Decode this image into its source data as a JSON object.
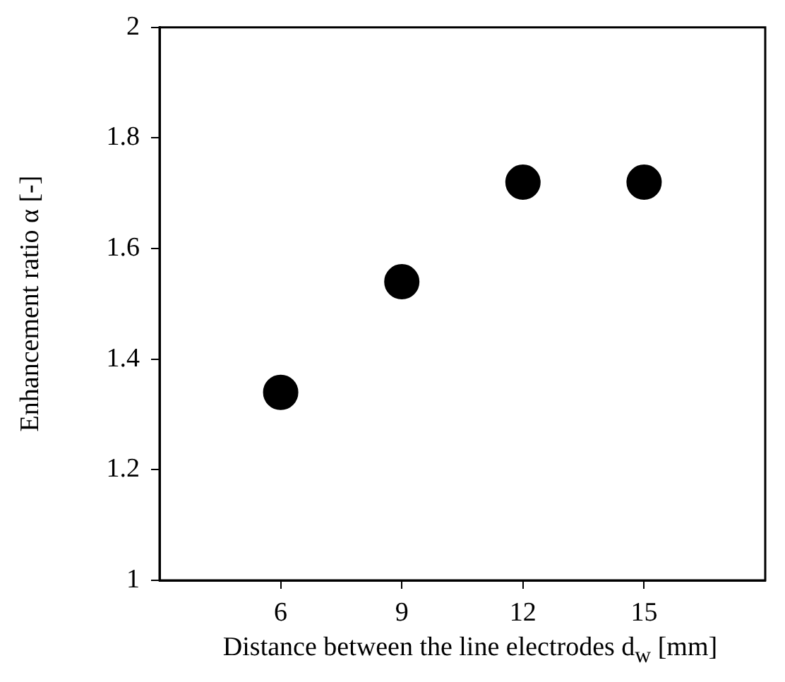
{
  "chart_data": {
    "type": "scatter",
    "xlabel": "Distance between the line electrodes d$_{w}$ [mm]",
    "ylabel": "Enhancement ratio α [-]",
    "x": [
      6,
      9,
      12,
      15
    ],
    "series": [
      {
        "color": "#000000",
        "values": [
          1.34,
          1.54,
          1.72,
          1.72
        ]
      }
    ],
    "xlim": [
      3,
      18
    ],
    "xticks": [
      6,
      9,
      12,
      15
    ],
    "ylim": [
      1,
      2
    ],
    "yticks": [
      1,
      1.2,
      1.4,
      1.6,
      1.8,
      2
    ],
    "grid": false,
    "legend": false,
    "marker": "circle"
  }
}
